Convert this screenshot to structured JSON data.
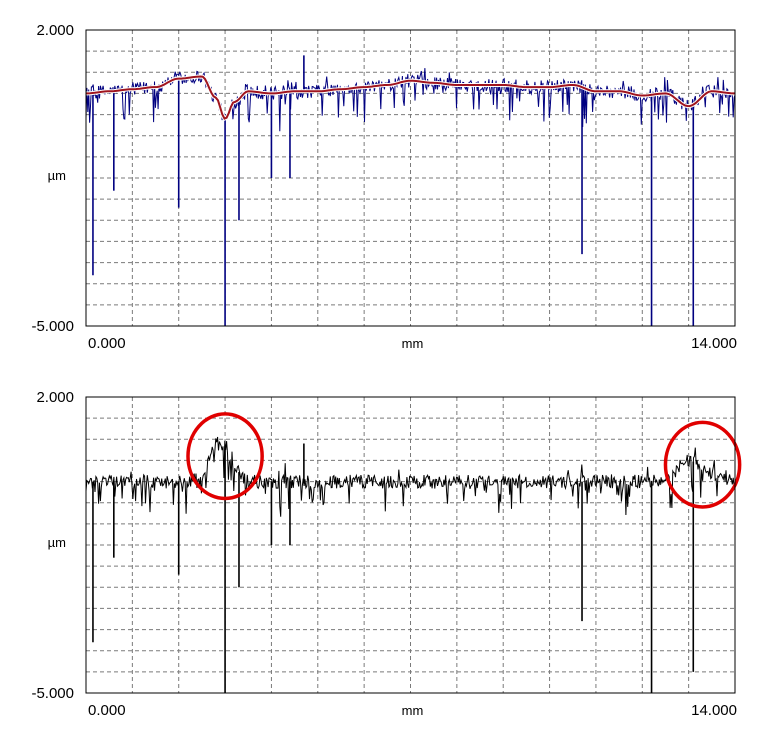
{
  "chart_data": [
    {
      "type": "line",
      "title": "",
      "xlabel": "mm",
      "ylabel": "µm",
      "xlim": [
        0,
        14
      ],
      "ylim": [
        -5,
        2
      ],
      "x_tick_labels": [
        "0.000",
        "14.000"
      ],
      "y_tick_labels": [
        "2.000",
        "-5.000"
      ],
      "grid": true,
      "series": [
        {
          "color": "#000080",
          "style": "noisy-profile",
          "x": [
            0,
            0.5,
            1,
            1.5,
            2,
            2.5,
            2.8,
            3,
            3.2,
            3.5,
            4,
            4.5,
            5,
            5.5,
            6,
            6.5,
            7,
            7.5,
            8,
            8.5,
            9,
            9.5,
            10,
            10.5,
            11,
            11.5,
            12,
            12.5,
            13,
            13.5,
            14
          ],
          "y": [
            0.5,
            0.55,
            0.6,
            0.65,
            0.85,
            0.9,
            0.4,
            -0.1,
            0.3,
            0.55,
            0.5,
            0.55,
            0.55,
            0.6,
            0.65,
            0.7,
            0.8,
            0.75,
            0.7,
            0.7,
            0.7,
            0.65,
            0.65,
            0.7,
            0.55,
            0.55,
            0.45,
            0.5,
            0.2,
            0.55,
            0.5
          ],
          "spikes": [
            [
              0.15,
              -3.8
            ],
            [
              0.6,
              -1.8
            ],
            [
              2.0,
              -2.2
            ],
            [
              3.0,
              -5.0
            ],
            [
              3.3,
              -2.5
            ],
            [
              4.0,
              -1.5
            ],
            [
              4.4,
              -1.5
            ],
            [
              10.7,
              -3.3
            ],
            [
              12.2,
              -5.0
            ],
            [
              13.1,
              -5.0
            ],
            [
              4.7,
              1.4
            ]
          ]
        },
        {
          "color": "#a0141e",
          "style": "smooth-filter",
          "x": [
            0,
            0.5,
            1,
            1.5,
            2,
            2.5,
            2.8,
            3,
            3.2,
            3.5,
            4,
            4.5,
            5,
            5.5,
            6,
            6.5,
            7,
            7.5,
            8,
            8.5,
            9,
            9.5,
            10,
            10.5,
            11,
            11.5,
            12,
            12.5,
            13,
            13.5,
            14
          ],
          "y": [
            0.5,
            0.55,
            0.6,
            0.65,
            0.85,
            0.9,
            0.4,
            -0.1,
            0.3,
            0.55,
            0.5,
            0.55,
            0.55,
            0.6,
            0.65,
            0.7,
            0.8,
            0.75,
            0.7,
            0.7,
            0.7,
            0.65,
            0.65,
            0.7,
            0.55,
            0.55,
            0.45,
            0.5,
            0.2,
            0.55,
            0.5
          ]
        }
      ]
    },
    {
      "type": "line",
      "title": "",
      "xlabel": "mm",
      "ylabel": "µm",
      "xlim": [
        0,
        14
      ],
      "ylim": [
        -5,
        2
      ],
      "x_tick_labels": [
        "0.000",
        "14.000"
      ],
      "y_tick_labels": [
        "2.000",
        "-5.000"
      ],
      "grid": true,
      "series": [
        {
          "color": "#000000",
          "style": "noisy-profile",
          "x": [
            0,
            0.5,
            1,
            1.5,
            2,
            2.5,
            2.8,
            3,
            3.2,
            3.5,
            4,
            4.5,
            5,
            5.5,
            6,
            6.5,
            7,
            7.5,
            8,
            8.5,
            9,
            9.5,
            10,
            10.5,
            11,
            11.5,
            12,
            12.5,
            13,
            13.5,
            14
          ],
          "y": [
            0,
            0,
            0,
            0,
            0,
            0.05,
            0.9,
            0.85,
            0.3,
            0,
            0,
            0,
            0,
            0,
            0,
            0,
            0,
            0,
            0,
            0,
            0,
            0,
            0,
            0,
            0,
            0,
            0,
            0.05,
            0.5,
            0.2,
            0
          ],
          "spikes": [
            [
              0.15,
              -3.8
            ],
            [
              0.6,
              -1.8
            ],
            [
              2.0,
              -2.2
            ],
            [
              3.0,
              -5.0
            ],
            [
              3.3,
              -2.5
            ],
            [
              4.0,
              -1.5
            ],
            [
              4.4,
              -1.5
            ],
            [
              10.7,
              -3.3
            ],
            [
              12.2,
              -5.0
            ],
            [
              13.1,
              -4.5
            ],
            [
              4.7,
              0.9
            ]
          ]
        }
      ],
      "annotations": [
        {
          "shape": "ellipse",
          "color": "#e00000",
          "center": [
            3.0,
            0.6
          ],
          "rx_mm": 0.8,
          "ry_um": 1.0
        },
        {
          "shape": "ellipse",
          "color": "#e00000",
          "center": [
            13.3,
            0.4
          ],
          "rx_mm": 0.8,
          "ry_um": 1.0
        }
      ]
    }
  ]
}
